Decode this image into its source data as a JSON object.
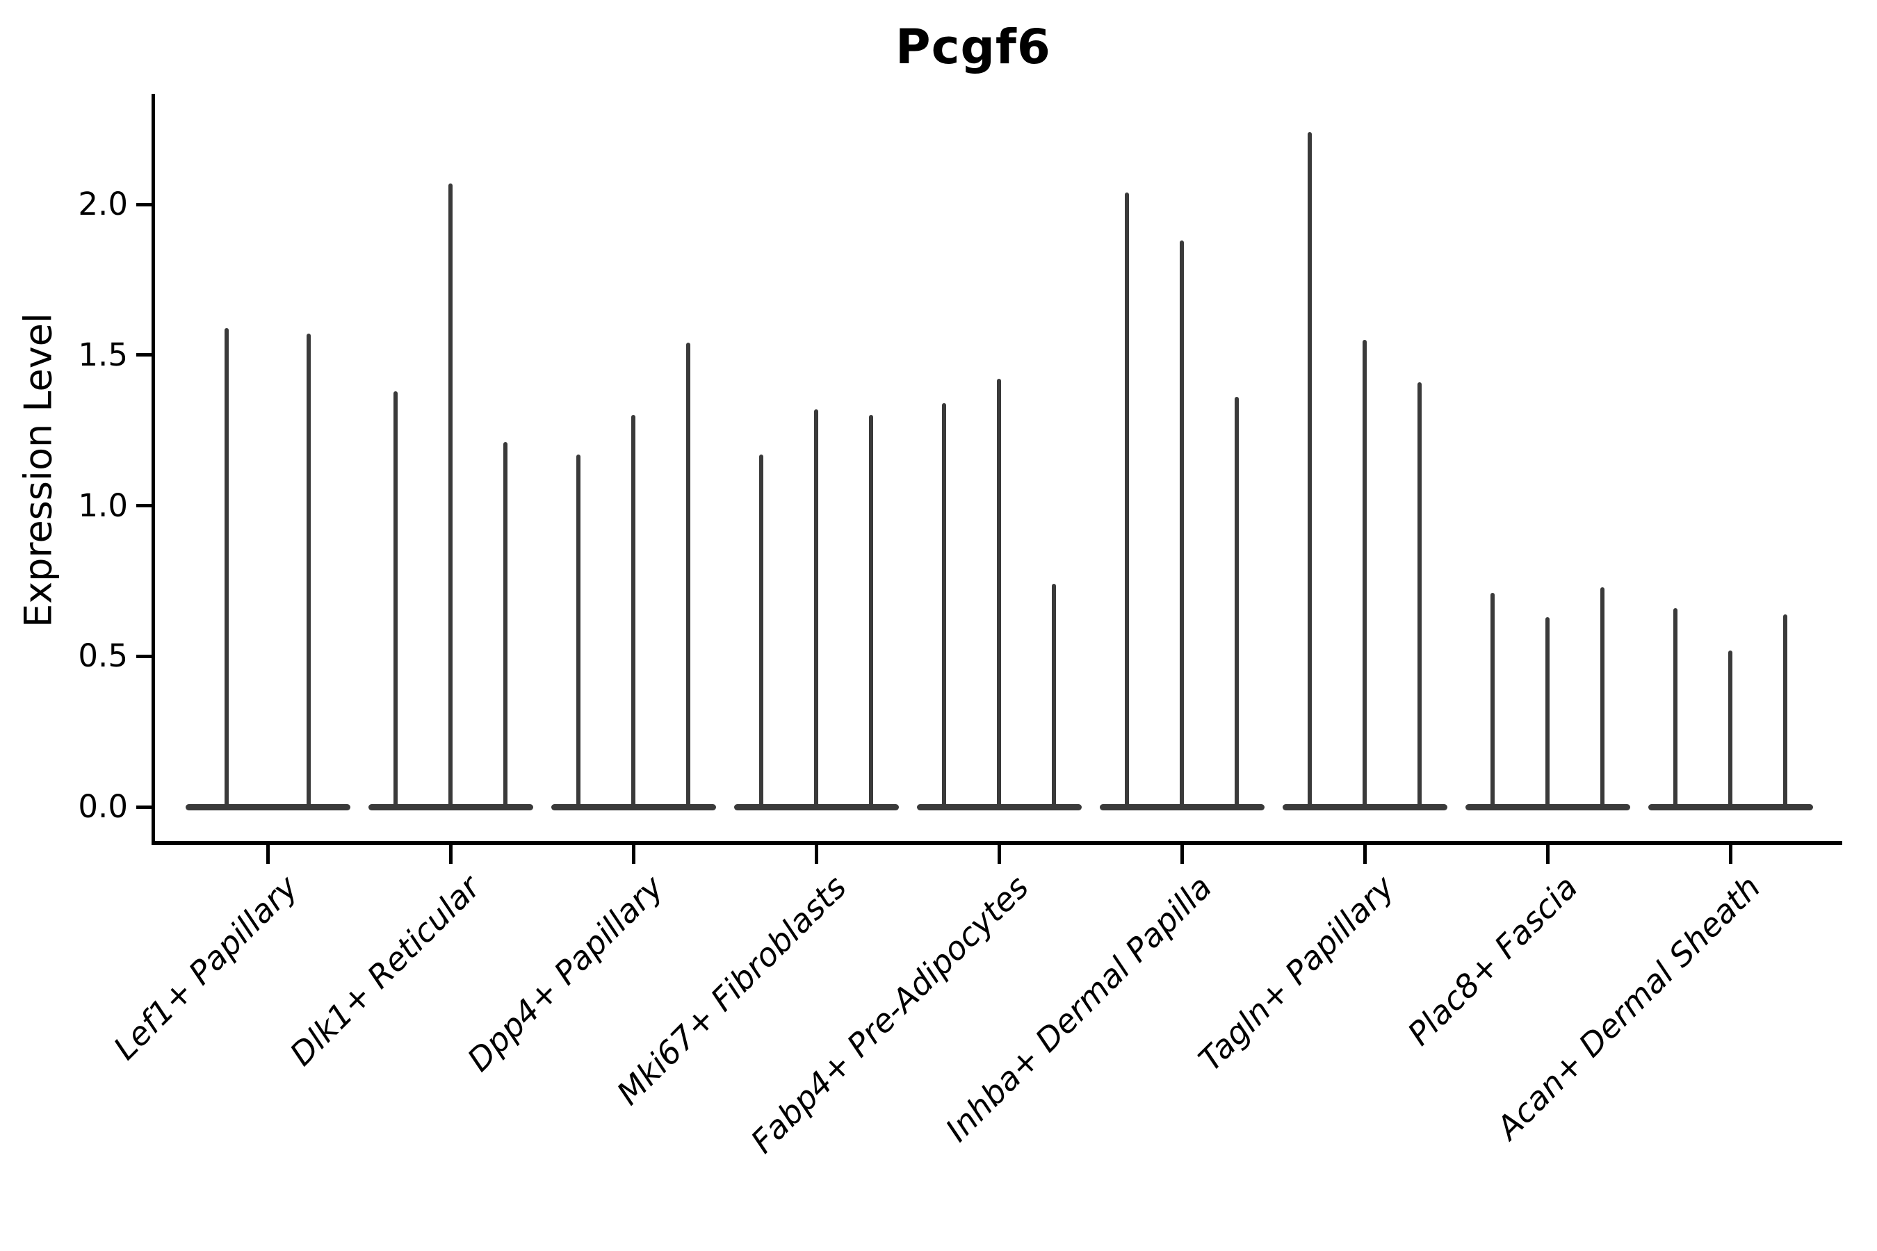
{
  "chart_data": {
    "type": "violin",
    "title": "Pcgf6",
    "ylabel": "Expression Level",
    "xlabel": "",
    "ylim": [
      0,
      2.37
    ],
    "yticks": [
      "2.0",
      "1.5",
      "1.0",
      "0.5",
      "0.0"
    ],
    "ytick_values": [
      2.0,
      1.5,
      1.0,
      0.5,
      0.0
    ],
    "grid": "off",
    "legend": "none",
    "violin_color": "#3a3a3a",
    "description": "Thin spike violins: wide flat base at expression 0 with a narrow tail reaching the max expression value per violin.",
    "groups": [
      {
        "label": "Lef1+ Papillary",
        "violin_max": [
          1.59,
          1.57
        ]
      },
      {
        "label": "Dlk1+ Reticular",
        "violin_max": [
          1.38,
          2.07,
          1.21
        ]
      },
      {
        "label": "Dpp4+ Papillary",
        "violin_max": [
          1.17,
          1.3,
          1.54
        ]
      },
      {
        "label": "Mki67+ Fibroblasts",
        "violin_max": [
          1.17,
          1.32,
          1.3
        ]
      },
      {
        "label": "Fabp4+ Pre-Adipocytes",
        "violin_max": [
          1.34,
          1.42,
          0.74
        ]
      },
      {
        "label": "Inhba+ Dermal Papilla",
        "violin_max": [
          2.04,
          1.88,
          1.36
        ]
      },
      {
        "label": "Tagln+ Papillary",
        "violin_max": [
          2.24,
          1.55,
          1.41
        ]
      },
      {
        "label": "Plac8+ Fascia",
        "violin_max": [
          0.71,
          0.63,
          0.73
        ]
      },
      {
        "label": "Acan+ Dermal Sheath",
        "violin_max": [
          0.66,
          0.52,
          0.64
        ]
      }
    ]
  }
}
